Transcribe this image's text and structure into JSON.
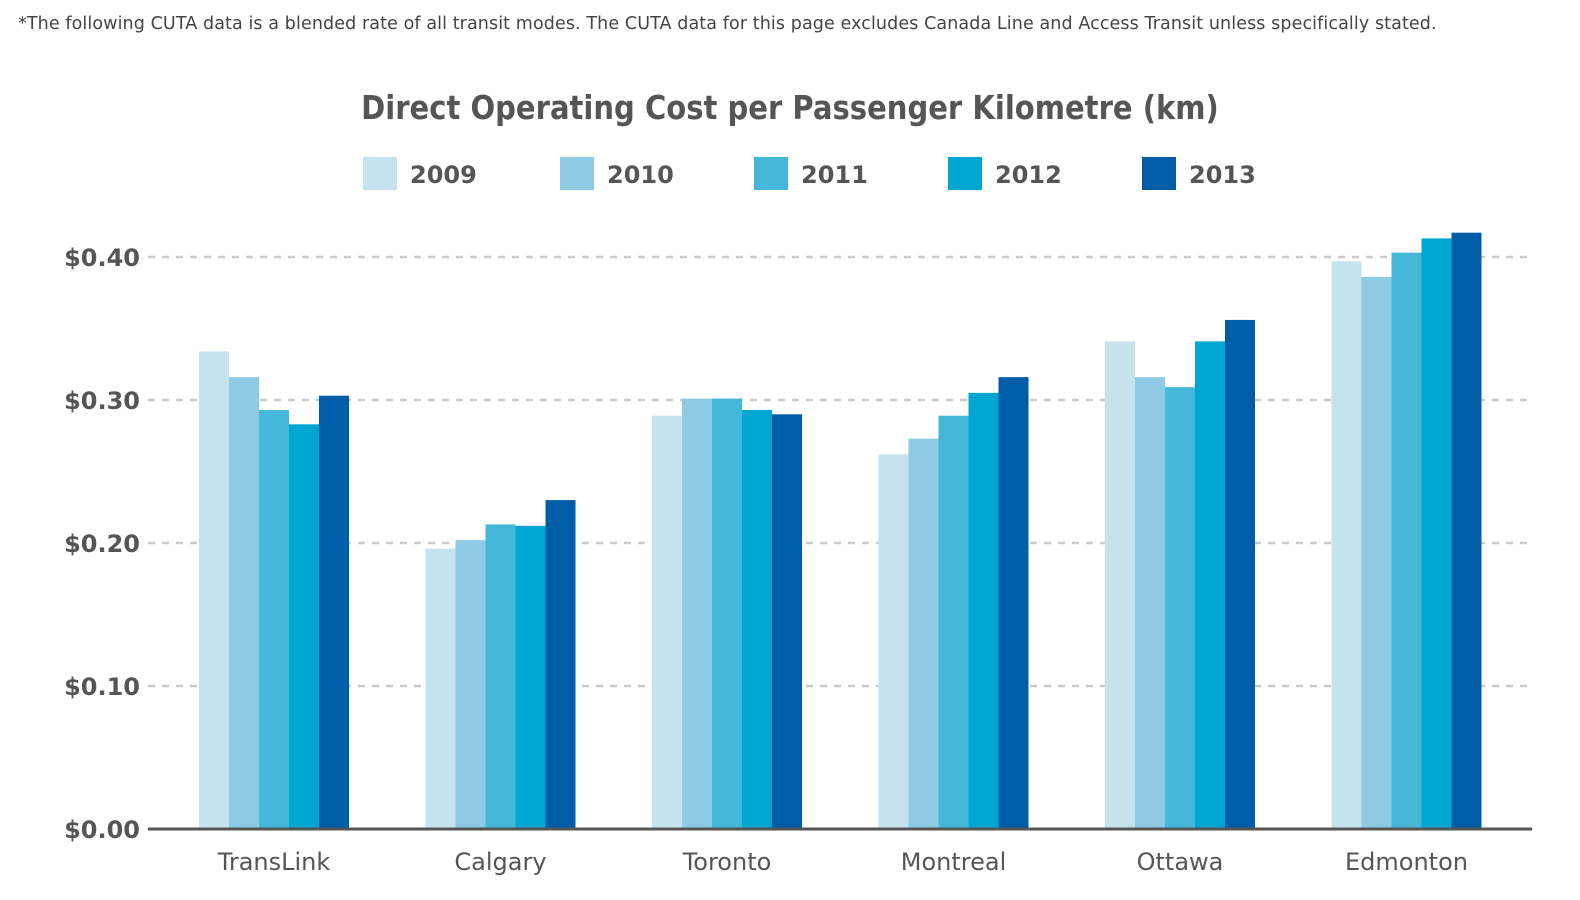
{
  "footnote": "*The following CUTA data is a blended rate of all transit modes. The CUTA data for this page excludes Canada Line and Access Transit unless specifically stated.",
  "chart_data": {
    "type": "bar",
    "title": "Direct Operating Cost per Passenger Kilometre (km)",
    "xlabel": "",
    "ylabel": "",
    "categories": [
      "TransLink",
      "Calgary",
      "Toronto",
      "Montreal",
      "Ottawa",
      "Edmonton"
    ],
    "y_ticks": [
      {
        "value": 0.0,
        "label": "$0.00"
      },
      {
        "value": 0.1,
        "label": "$0.10"
      },
      {
        "value": 0.2,
        "label": "$0.20"
      },
      {
        "value": 0.3,
        "label": "$0.30"
      },
      {
        "value": 0.4,
        "label": "$0.40"
      }
    ],
    "ylim": [
      0,
      0.4
    ],
    "grid": true,
    "legend_position": "top",
    "series": [
      {
        "name": "2009",
        "color": "#c4e3ef",
        "values": [
          0.334,
          0.196,
          0.289,
          0.262,
          0.341,
          0.397
        ]
      },
      {
        "name": "2010",
        "color": "#8ccbe3",
        "values": [
          0.316,
          0.202,
          0.301,
          0.273,
          0.316,
          0.386
        ]
      },
      {
        "name": "2011",
        "color": "#45b8da",
        "values": [
          0.293,
          0.213,
          0.301,
          0.289,
          0.309,
          0.403
        ]
      },
      {
        "name": "2012",
        "color": "#00a6d2",
        "values": [
          0.283,
          0.212,
          0.293,
          0.305,
          0.341,
          0.413
        ]
      },
      {
        "name": "2013",
        "color": "#005da8",
        "values": [
          0.303,
          0.23,
          0.29,
          0.316,
          0.356,
          0.417
        ]
      }
    ]
  }
}
